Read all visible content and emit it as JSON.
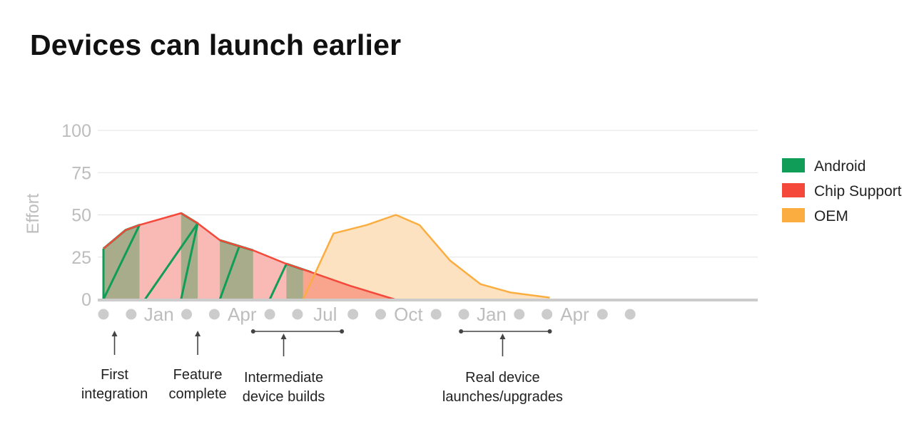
{
  "title": "Devices can launch earlier",
  "colors": {
    "android": "#0f9d58",
    "android_fill": "#a8ac8a",
    "chip": "#f4493a",
    "chip_fill": "#f9b9b5",
    "chip_overlap_fill": "#f9a58e",
    "oem": "#fbad3f",
    "oem_fill": "#fde0bf",
    "axis": "#cccccc",
    "grid": "#e3e3e3",
    "tick_text": "#bdbdbd",
    "annotation_text": "#222222"
  },
  "chart_data": {
    "type": "area",
    "ylabel": "Effort",
    "xlabel": "",
    "ylim": [
      0,
      100
    ],
    "yticks": [
      0,
      25,
      50,
      75,
      100
    ],
    "grid": true,
    "legend_position": "right",
    "x_slots": [
      "",
      "",
      "Jan",
      "",
      "",
      "Apr",
      "",
      "",
      "Jul",
      "",
      "",
      "Oct",
      "",
      "",
      "Jan",
      "",
      "",
      "Apr",
      "",
      ""
    ],
    "series": [
      {
        "name": "Chip Support",
        "x": [
          0,
          0.8,
          1.3,
          2.8,
          3.4,
          4.2,
          5.4,
          6.6,
          7.5,
          8.9,
          10.5
        ],
        "y": [
          30,
          41,
          44,
          51,
          45,
          35,
          29,
          21,
          16,
          8,
          0
        ]
      },
      {
        "name": "OEM",
        "x": [
          7.2,
          8.3,
          9.5,
          10.55,
          11.4,
          12.5,
          13.6,
          14.7,
          16.1
        ],
        "y": [
          0,
          39,
          44,
          50,
          44,
          23,
          9,
          4,
          1
        ]
      },
      {
        "name": "Android",
        "x": [
          0,
          0.8,
          1.3,
          2.8,
          3.4,
          4.2,
          5.4,
          6.6,
          7.5,
          8.9,
          10.5
        ],
        "y": [
          30,
          41,
          44,
          51,
          45,
          35,
          29,
          21,
          16,
          8,
          0
        ],
        "active_segments": [
          [
            0,
            1.3
          ],
          [
            2.8,
            3.4
          ],
          [
            4.2,
            5.4
          ],
          [
            6.6,
            7.5
          ]
        ]
      }
    ],
    "legend": [
      "Android",
      "Chip Support",
      "OEM"
    ],
    "annotations": [
      {
        "text": [
          "First",
          "integration"
        ],
        "x": 0.4
      },
      {
        "text": [
          "Feature",
          "complete"
        ],
        "x": 3.4
      },
      {
        "text": [
          "Intermediate",
          "device builds"
        ],
        "x": 6.5,
        "span": [
          5.4,
          8.6
        ]
      },
      {
        "text": [
          "Real device",
          "launches/upgrades"
        ],
        "x": 14.4,
        "span": [
          12.9,
          16.1
        ]
      }
    ]
  }
}
